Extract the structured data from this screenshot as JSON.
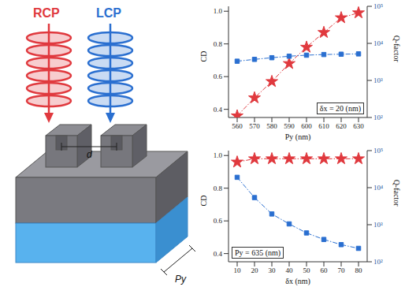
{
  "illustration": {
    "rcp": "RCP",
    "lcp": "LCP",
    "gap": "d",
    "period": "Py"
  },
  "chart_data": [
    {
      "type": "line",
      "x_label": "Py (nm)",
      "y_label": "CD",
      "y2_label": "Q-factor",
      "annotation": "δx = 20 (nm)",
      "x": [
        560,
        570,
        580,
        590,
        600,
        610,
        620,
        630
      ],
      "xlim": [
        555,
        635
      ],
      "xticks": [
        560,
        570,
        580,
        590,
        600,
        610,
        620,
        630
      ],
      "ylim": [
        0.35,
        1.03
      ],
      "yticks": [
        0.4,
        0.6,
        0.8,
        {
          "value": 1,
          "label": "1.0"
        }
      ],
      "y2lim": [
        100,
        100000
      ],
      "y2ticks": [
        {
          "value": 100,
          "label": "10²"
        },
        {
          "value": 1000,
          "label": "10³"
        },
        {
          "value": 10000,
          "label": "10⁴"
        },
        {
          "value": 100000,
          "label": "10⁵"
        }
      ],
      "log": "y2",
      "series": [
        {
          "name": "CD",
          "color": "#e0393e",
          "marker": "star",
          "line_style": "dashdot",
          "values": [
            0.36,
            0.47,
            0.57,
            0.68,
            0.78,
            0.87,
            0.96,
            0.99
          ]
        },
        {
          "name": "Q-factor",
          "axis": "y2",
          "color": "#2a6fd0",
          "marker": "square",
          "line_style": "dashdot",
          "values": [
            3300,
            3700,
            4100,
            4500,
            4800,
            5000,
            5100,
            5200
          ]
        }
      ]
    },
    {
      "type": "line",
      "x_label": "δx (nm)",
      "y_label": "CD",
      "y2_label": "Q-factor",
      "annotation": "Py = 635 (nm)",
      "x": [
        10,
        20,
        30,
        40,
        50,
        60,
        70,
        80
      ],
      "xlim": [
        5,
        85
      ],
      "xticks": [
        10,
        20,
        30,
        40,
        50,
        60,
        70,
        80
      ],
      "ylim": [
        0.35,
        1.03
      ],
      "yticks": [
        0.4,
        0.6,
        0.8,
        {
          "value": 1,
          "label": "1.0"
        }
      ],
      "y2lim": [
        100,
        100000
      ],
      "y2ticks": [
        {
          "value": 100,
          "label": "10²"
        },
        {
          "value": 1000,
          "label": "10³"
        },
        {
          "value": 10000,
          "label": "10⁴"
        },
        {
          "value": 100000,
          "label": "10⁵"
        }
      ],
      "log": "y2",
      "series": [
        {
          "name": "CD",
          "color": "#e0393e",
          "marker": "star",
          "line_style": "dashdot",
          "values": [
            0.96,
            0.98,
            0.98,
            0.98,
            0.98,
            0.98,
            0.98,
            0.98
          ]
        },
        {
          "name": "Q-factor",
          "axis": "y2",
          "color": "#2a6fd0",
          "marker": "square",
          "line_style": "dashdot",
          "values": [
            19000,
            5400,
            1950,
            1050,
            600,
            400,
            290,
            230
          ]
        }
      ]
    }
  ]
}
